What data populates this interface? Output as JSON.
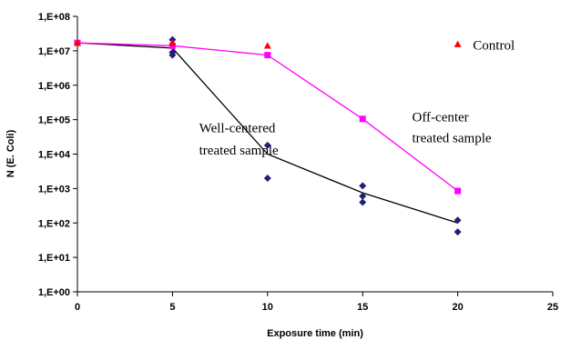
{
  "chart_data": {
    "type": "scatter",
    "title": "",
    "xlabel": "Exposure time (min)",
    "ylabel": "N (E. Coli)",
    "xlim": [
      0,
      25
    ],
    "ylim": [
      1,
      100000000
    ],
    "yscale": "log",
    "grid": false,
    "x_ticks": [
      0,
      5,
      10,
      15,
      20,
      25
    ],
    "x_tick_labels": [
      "0",
      "5",
      "10",
      "15",
      "20",
      "25"
    ],
    "y_ticks": [
      1,
      10,
      100,
      1000,
      10000,
      100000,
      1000000,
      10000000,
      100000000
    ],
    "y_tick_labels": [
      "1,E+00",
      "1,E+01",
      "1,E+02",
      "1,E+03",
      "1,E+04",
      "1,E+05",
      "1,E+06",
      "1,E+07",
      "1,E+08"
    ],
    "annotations": [
      {
        "text": "Control",
        "x": 20.8,
        "y": 11000000
      },
      {
        "text": "Off-center",
        "x": 17.6,
        "y": 90000
      },
      {
        "text": "treated sample",
        "x": 17.6,
        "y": 22000
      },
      {
        "text": "Well-centered",
        "x": 6.4,
        "y": 43000
      },
      {
        "text": "treated sample",
        "x": 6.4,
        "y": 9800
      }
    ],
    "series": [
      {
        "marker": "diamond",
        "color": "#1f1f7a",
        "points": [
          {
            "x": 0,
            "y": 17000000
          },
          {
            "x": 5,
            "y": 21000000
          },
          {
            "x": 5,
            "y": 9000000
          },
          {
            "x": 5,
            "y": 7500000
          },
          {
            "x": 10,
            "y": 18000
          },
          {
            "x": 10,
            "y": 2000
          },
          {
            "x": 15,
            "y": 1200
          },
          {
            "x": 15,
            "y": 600
          },
          {
            "x": 15,
            "y": 400
          },
          {
            "x": 20,
            "y": 120
          },
          {
            "x": 20,
            "y": 55
          }
        ],
        "line": {
          "color": "#000000",
          "points": [
            {
              "x": 0,
              "y": 17000000
            },
            {
              "x": 5,
              "y": 12000000
            },
            {
              "x": 10,
              "y": 10000
            },
            {
              "x": 15,
              "y": 750
            },
            {
              "x": 20,
              "y": 100
            }
          ]
        }
      },
      {
        "marker": "square",
        "color": "#ff00ff",
        "points": [
          {
            "x": 0,
            "y": 17000000
          },
          {
            "x": 5,
            "y": 14000000
          },
          {
            "x": 10,
            "y": 7500000
          },
          {
            "x": 15,
            "y": 105000
          },
          {
            "x": 20,
            "y": 850
          }
        ],
        "line": {
          "color": "#ff00ff",
          "points": [
            {
              "x": 0,
              "y": 17000000
            },
            {
              "x": 5,
              "y": 14000000
            },
            {
              "x": 10,
              "y": 7500000
            },
            {
              "x": 15,
              "y": 105000
            },
            {
              "x": 20,
              "y": 850
            }
          ]
        }
      },
      {
        "marker": "triangle",
        "color": "#ff0000",
        "points": [
          {
            "x": 0,
            "y": 17000000
          },
          {
            "x": 5,
            "y": 17000000
          },
          {
            "x": 10,
            "y": 14000000
          },
          {
            "x": 20,
            "y": 15500000
          }
        ]
      }
    ]
  }
}
